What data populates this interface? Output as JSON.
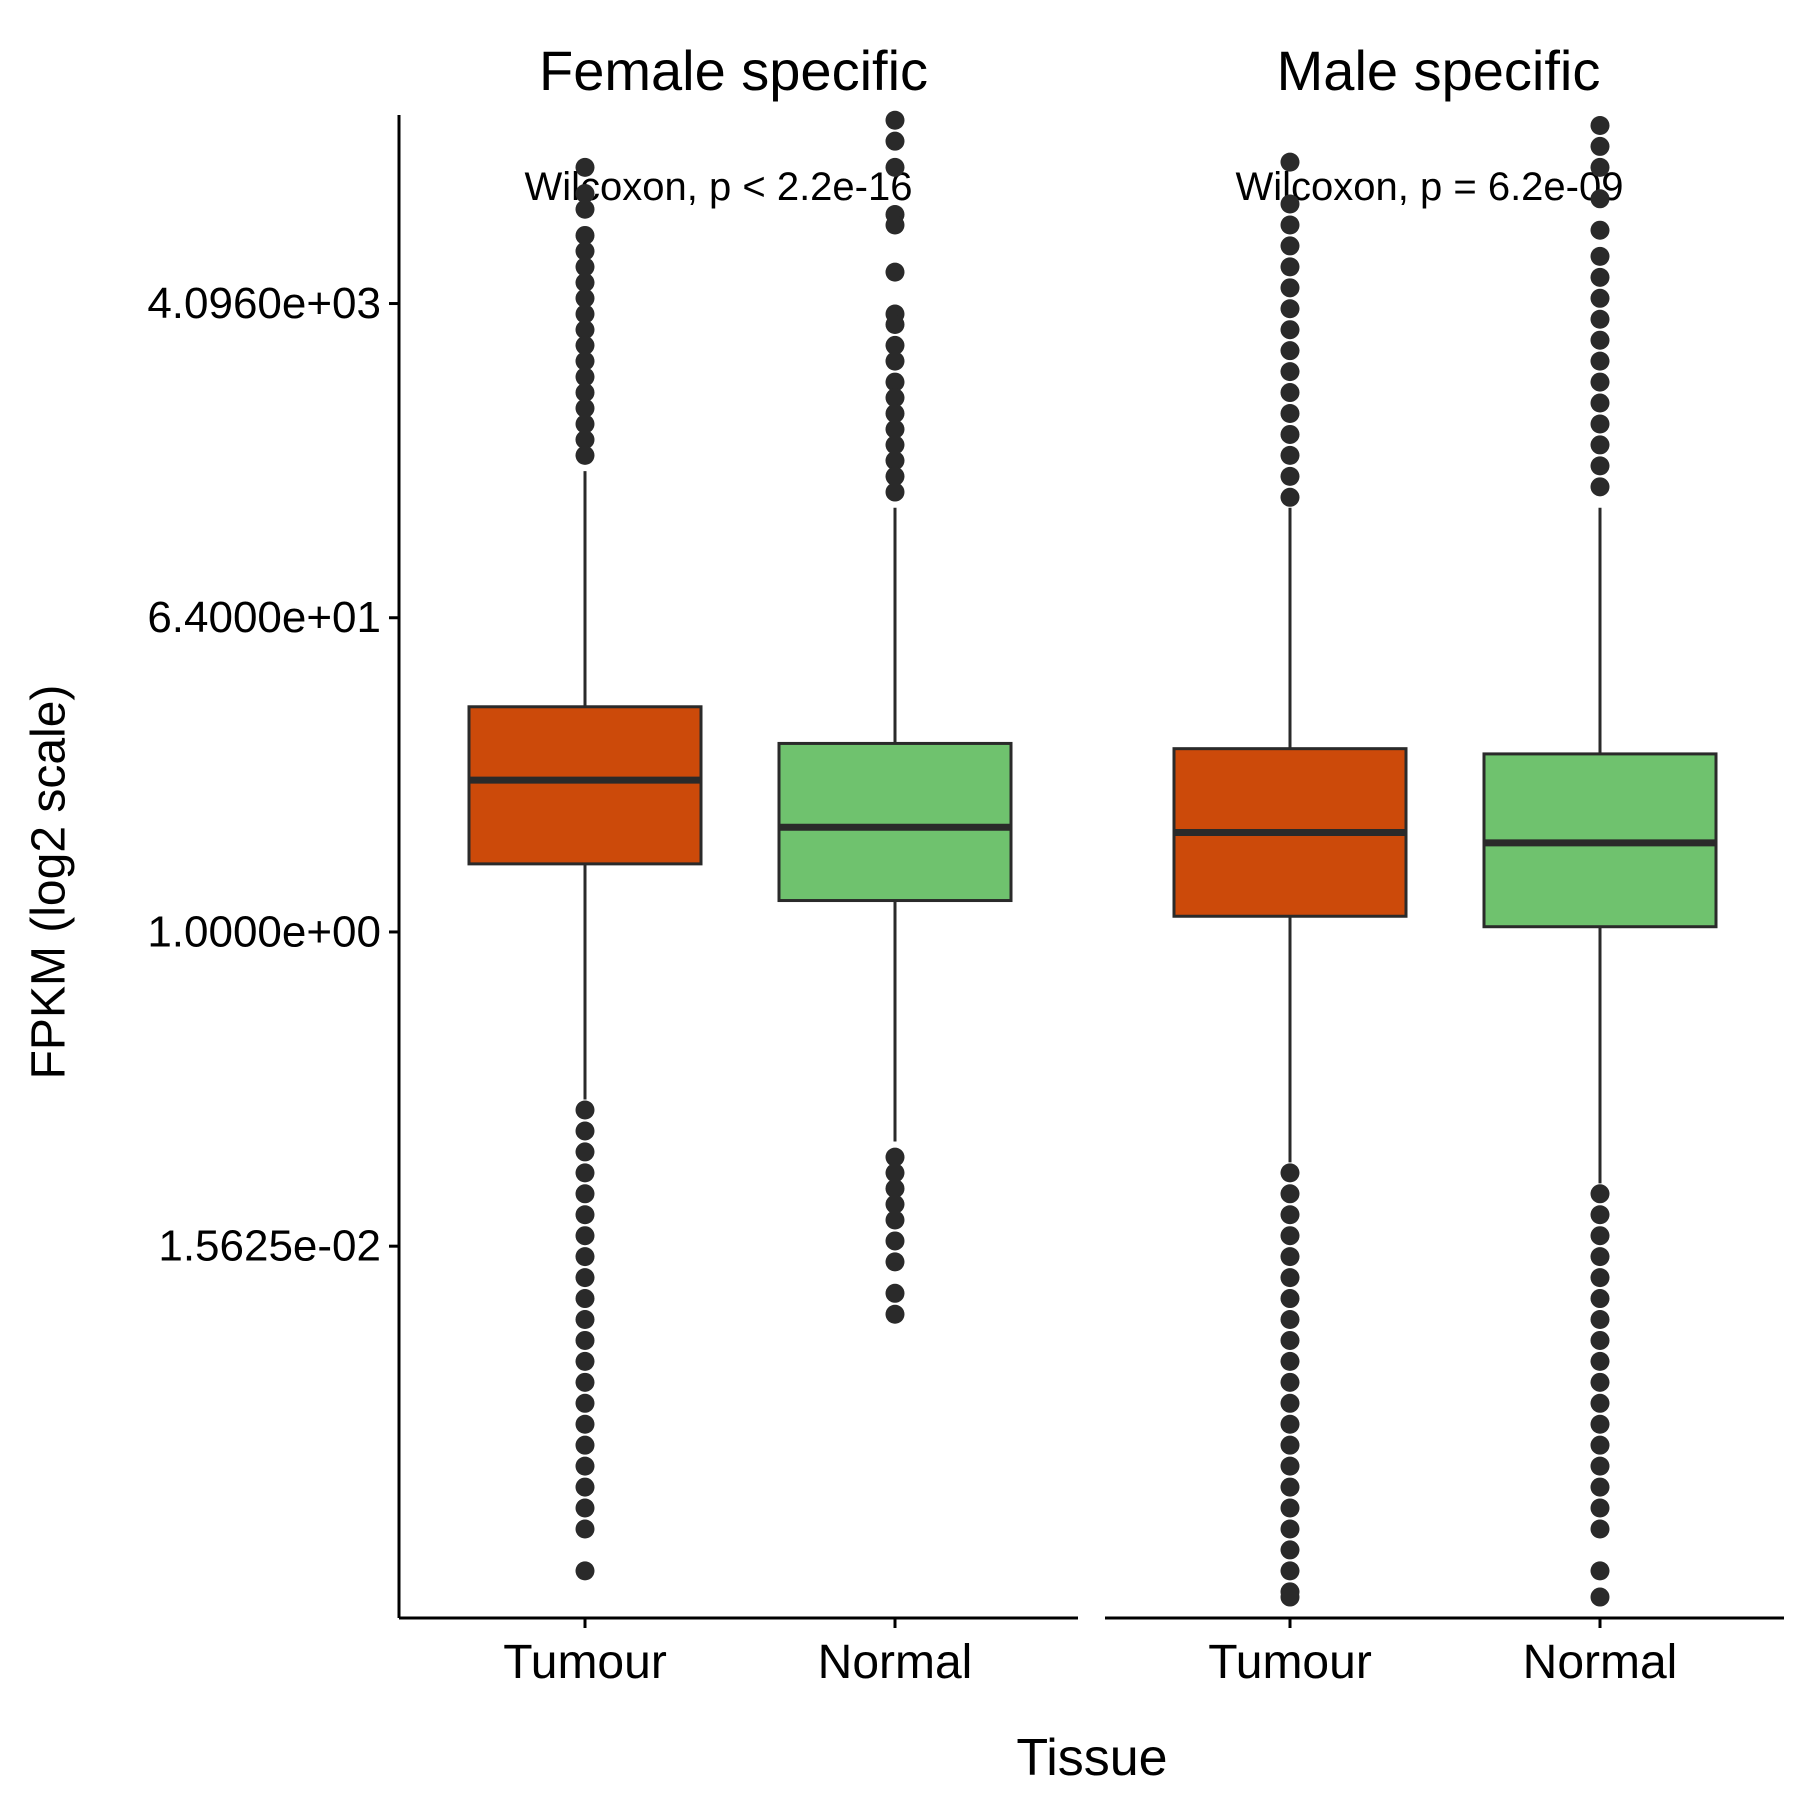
{
  "chart_data": {
    "type": "boxplot",
    "y_scale": "log2",
    "ylabel": "FPKM (log2 scale)",
    "xlabel": "Tissue",
    "y_tick_labels": [
      "4.0960e+03",
      "6.4000e+01",
      "1.0000e+00",
      "1.5625e-02"
    ],
    "y_tick_values": [
      4096,
      64,
      1,
      0.015625
    ],
    "ylim_log2": [
      -13.1,
      15.6
    ],
    "colors": {
      "Tumour": "#CC4A0A",
      "Normal": "#6FC26E"
    },
    "panels": [
      {
        "title": "Female specific",
        "annotation": "Wilcoxon, p < 2.2e-16",
        "categories": [
          "Tumour",
          "Normal"
        ],
        "boxes": [
          {
            "category": "Tumour",
            "log2": {
              "min": -3.2,
              "q1": 1.3,
              "median": 2.9,
              "q3": 4.3,
              "max": 8.8
            },
            "outliers_log2": [
              14.6,
              14.1,
              13.8,
              13.3,
              13.0,
              12.7,
              12.4,
              12.1,
              11.8,
              11.5,
              11.2,
              10.9,
              10.6,
              10.3,
              10.0,
              9.7,
              9.4,
              9.1,
              -3.4,
              -3.8,
              -4.2,
              -4.6,
              -5.0,
              -5.4,
              -5.8,
              -6.2,
              -6.6,
              -7.0,
              -7.4,
              -7.8,
              -8.2,
              -8.6,
              -9.0,
              -9.4,
              -9.8,
              -10.2,
              -10.6,
              -11.0,
              -11.4,
              -12.2
            ]
          },
          {
            "category": "Normal",
            "log2": {
              "min": -4.0,
              "q1": 0.6,
              "median": 2.0,
              "q3": 3.6,
              "max": 8.1
            },
            "outliers_log2": [
              15.5,
              15.1,
              14.6,
              13.7,
              13.5,
              12.6,
              11.8,
              11.6,
              11.2,
              10.9,
              10.5,
              10.2,
              9.9,
              9.6,
              9.3,
              9.0,
              8.7,
              8.4,
              -4.3,
              -4.6,
              -4.9,
              -5.2,
              -5.5,
              -5.9,
              -6.3,
              -6.9,
              -7.3
            ]
          }
        ]
      },
      {
        "title": "Male specific",
        "annotation": "Wilcoxon, p = 6.2e-09",
        "categories": [
          "Tumour",
          "Normal"
        ],
        "boxes": [
          {
            "category": "Tumour",
            "log2": {
              "min": -4.4,
              "q1": 0.3,
              "median": 1.9,
              "q3": 3.5,
              "max": 8.1
            },
            "outliers_log2": [
              14.7,
              13.9,
              13.5,
              13.1,
              12.7,
              12.3,
              11.9,
              11.5,
              11.1,
              10.7,
              10.3,
              9.9,
              9.5,
              9.1,
              8.7,
              8.3,
              -4.6,
              -5.0,
              -5.4,
              -5.8,
              -6.2,
              -6.6,
              -7.0,
              -7.4,
              -7.8,
              -8.2,
              -8.6,
              -9.0,
              -9.4,
              -9.8,
              -10.2,
              -10.6,
              -11.0,
              -11.4,
              -11.8,
              -12.2,
              -12.6,
              -12.7
            ]
          },
          {
            "category": "Normal",
            "log2": {
              "min": -4.8,
              "q1": 0.1,
              "median": 1.7,
              "q3": 3.4,
              "max": 8.1
            },
            "outliers_log2": [
              15.4,
              15.0,
              14.6,
              14.0,
              13.4,
              12.9,
              12.5,
              12.1,
              11.7,
              11.3,
              10.9,
              10.5,
              10.1,
              9.7,
              9.3,
              8.9,
              8.5,
              -5.0,
              -5.4,
              -5.8,
              -6.2,
              -6.6,
              -7.0,
              -7.4,
              -7.8,
              -8.2,
              -8.6,
              -9.0,
              -9.4,
              -9.8,
              -10.2,
              -10.6,
              -11.0,
              -11.4,
              -12.2,
              -12.7
            ]
          }
        ]
      }
    ]
  }
}
